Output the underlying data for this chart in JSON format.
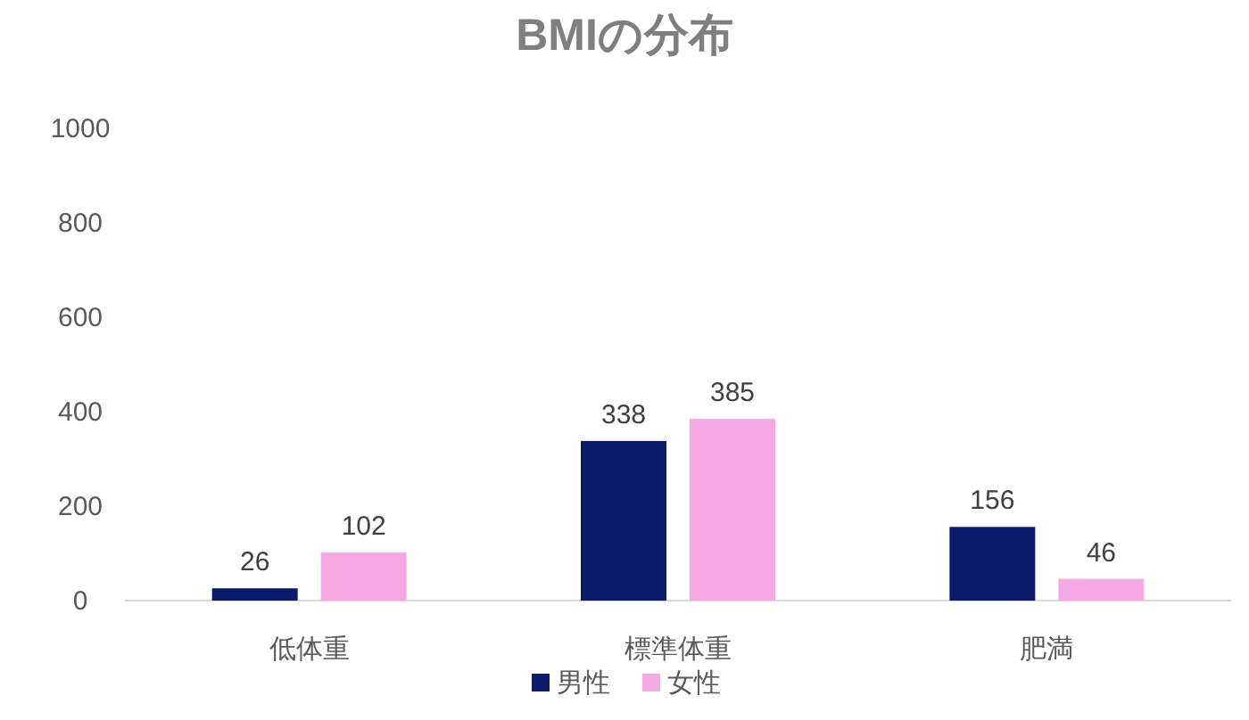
{
  "chart_data": {
    "type": "bar",
    "title": "BMIの分布",
    "categories": [
      "低体重",
      "標準体重",
      "肥満"
    ],
    "series": [
      {
        "name": "男性",
        "color": "#0b1a6b",
        "values": [
          26,
          338,
          156
        ]
      },
      {
        "name": "女性",
        "color": "#f4a9e4",
        "values": [
          102,
          385,
          46
        ]
      }
    ],
    "ylim": [
      0,
      1000
    ],
    "yticks": [
      0,
      200,
      400,
      600,
      800,
      1000
    ],
    "grid": false,
    "legend": "bottom",
    "data_labels": true
  }
}
